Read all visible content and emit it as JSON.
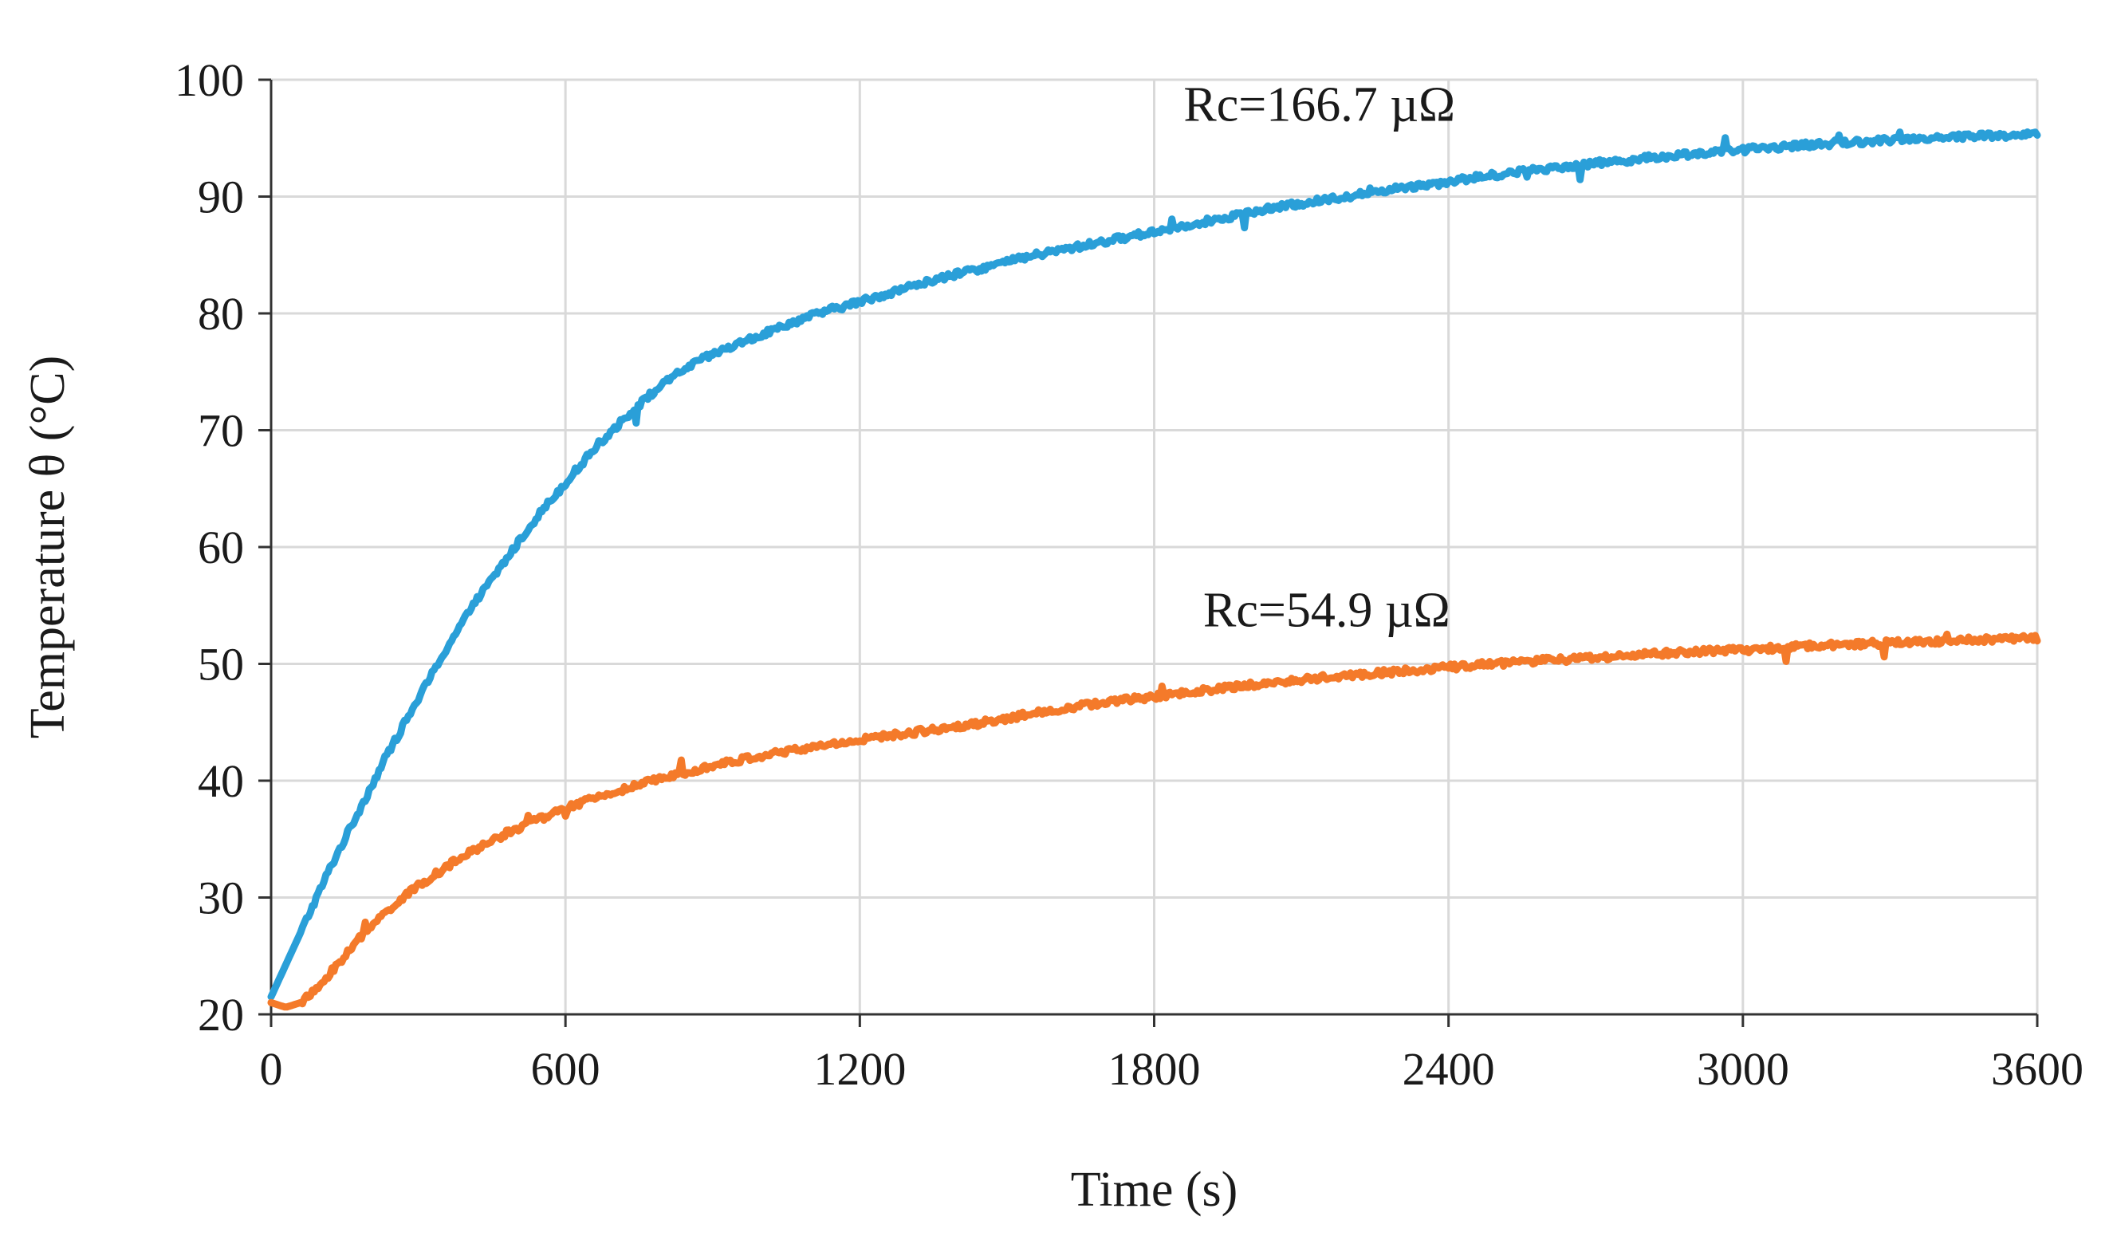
{
  "chart_data": {
    "type": "line",
    "title": "",
    "xlabel": "Time (s)",
    "ylabel": "Temperature θ (°C)",
    "xlim": [
      0,
      3600
    ],
    "ylim": [
      20,
      100
    ],
    "xticks": [
      0,
      600,
      1200,
      1800,
      2400,
      3000,
      3600
    ],
    "yticks": [
      20,
      30,
      40,
      50,
      60,
      70,
      80,
      90,
      100
    ],
    "grid": true,
    "series": [
      {
        "name": "Rc=166.7 µΩ",
        "color": "#2a9fd8",
        "label": "Rc=166.7 µΩ",
        "label_anchor": {
          "x": 1860,
          "y": 96.5
        },
        "points": [
          [
            0,
            21.5
          ],
          [
            60,
            27
          ],
          [
            120,
            32.5
          ],
          [
            180,
            37.5
          ],
          [
            240,
            42.5
          ],
          [
            300,
            47
          ],
          [
            360,
            51.5
          ],
          [
            420,
            55.5
          ],
          [
            480,
            59
          ],
          [
            540,
            62.5
          ],
          [
            600,
            65.5
          ],
          [
            660,
            68.5
          ],
          [
            720,
            71
          ],
          [
            780,
            73.3
          ],
          [
            840,
            75.2
          ],
          [
            900,
            76.5
          ],
          [
            960,
            77.5
          ],
          [
            1020,
            78.5
          ],
          [
            1080,
            79.5
          ],
          [
            1140,
            80.3
          ],
          [
            1200,
            81
          ],
          [
            1320,
            82.5
          ],
          [
            1440,
            83.8
          ],
          [
            1560,
            85
          ],
          [
            1680,
            86
          ],
          [
            1800,
            87
          ],
          [
            1920,
            88
          ],
          [
            2040,
            89
          ],
          [
            2160,
            89.8
          ],
          [
            2280,
            90.6
          ],
          [
            2400,
            91.3
          ],
          [
            2520,
            92
          ],
          [
            2640,
            92.6
          ],
          [
            2760,
            93.1
          ],
          [
            2880,
            93.6
          ],
          [
            3000,
            94
          ],
          [
            3120,
            94.4
          ],
          [
            3240,
            94.7
          ],
          [
            3360,
            95
          ],
          [
            3480,
            95.2
          ],
          [
            3600,
            95.3
          ]
        ]
      },
      {
        "name": "Rc=54.9 µΩ",
        "color": "#f47a2a",
        "label": "Rc=54.9 µΩ",
        "label_anchor": {
          "x": 1900,
          "y": 53.2
        },
        "points": [
          [
            0,
            21
          ],
          [
            30,
            20.6
          ],
          [
            60,
            21
          ],
          [
            90,
            22
          ],
          [
            120,
            23.5
          ],
          [
            180,
            26.5
          ],
          [
            240,
            29
          ],
          [
            300,
            31
          ],
          [
            360,
            32.7
          ],
          [
            420,
            34.2
          ],
          [
            480,
            35.5
          ],
          [
            540,
            36.6
          ],
          [
            600,
            37.6
          ],
          [
            660,
            38.5
          ],
          [
            720,
            39.3
          ],
          [
            780,
            40
          ],
          [
            840,
            40.7
          ],
          [
            900,
            41.3
          ],
          [
            960,
            41.8
          ],
          [
            1020,
            42.3
          ],
          [
            1080,
            42.7
          ],
          [
            1140,
            43.1
          ],
          [
            1200,
            43.5
          ],
          [
            1320,
            44.2
          ],
          [
            1440,
            44.9
          ],
          [
            1560,
            45.8
          ],
          [
            1680,
            46.6
          ],
          [
            1800,
            47.2
          ],
          [
            1920,
            47.8
          ],
          [
            2040,
            48.4
          ],
          [
            2160,
            48.9
          ],
          [
            2280,
            49.3
          ],
          [
            2400,
            49.7
          ],
          [
            2520,
            50.1
          ],
          [
            2640,
            50.4
          ],
          [
            2760,
            50.7
          ],
          [
            2880,
            51
          ],
          [
            3000,
            51.2
          ],
          [
            3120,
            51.5
          ],
          [
            3240,
            51.7
          ],
          [
            3360,
            51.9
          ],
          [
            3480,
            52.1
          ],
          [
            3600,
            52.2
          ]
        ]
      }
    ]
  }
}
